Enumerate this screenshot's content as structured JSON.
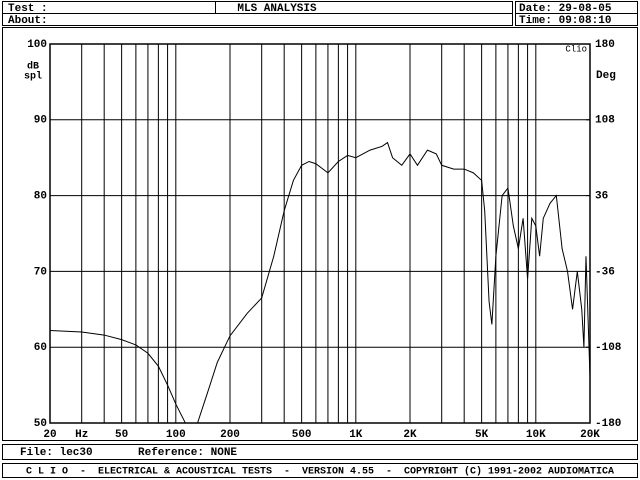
{
  "header": {
    "test_label": "Test :",
    "about_label": "About:",
    "title": "MLS ANALYSIS",
    "date": "Date: 29-08-05",
    "time": "Time: 09:08:10"
  },
  "chart_data": {
    "type": "line",
    "brand": "Clio",
    "y_label_lines": [
      "dB",
      "spl"
    ],
    "y2_label": "Deg",
    "x_unit": "Hz",
    "x_scale": "log",
    "grid": true,
    "xlim": [
      20,
      20000
    ],
    "xticks": [
      20,
      50,
      100,
      200,
      500,
      {
        "value": 1000,
        "label": "1K"
      },
      {
        "value": 2000,
        "label": "2K"
      },
      {
        "value": 5000,
        "label": "5K"
      },
      {
        "value": 10000,
        "label": "10K"
      },
      {
        "value": 20000,
        "label": "20K"
      }
    ],
    "xminor": [
      30,
      40,
      60,
      70,
      80,
      90,
      300,
      400,
      600,
      700,
      800,
      900,
      3000,
      4000,
      6000,
      7000,
      8000,
      9000
    ],
    "ylim": [
      50,
      100
    ],
    "yticks": [
      50,
      60,
      70,
      80,
      90,
      100
    ],
    "y2lim": [
      -180,
      180
    ],
    "y2ticks": [
      -180,
      -108,
      -36,
      36,
      108,
      180
    ],
    "series": [
      {
        "name": "lec30",
        "color": "#000000",
        "x": [
          20,
          30,
          40,
          50,
          60,
          70,
          80,
          90,
          100,
          113,
          120,
          132,
          150,
          170,
          200,
          250,
          300,
          350,
          400,
          450,
          500,
          550,
          600,
          700,
          800,
          900,
          1000,
          1200,
          1400,
          1500,
          1600,
          1800,
          2000,
          2200,
          2500,
          2800,
          3000,
          3500,
          4000,
          4500,
          5000,
          5200,
          5500,
          5700,
          6000,
          6500,
          7000,
          7500,
          8000,
          8500,
          9000,
          9500,
          10000,
          10500,
          11000,
          12000,
          13000,
          14000,
          15000,
          16000,
          17000,
          18000,
          18500,
          19000,
          20000
        ],
        "values": [
          62.2,
          62,
          61.6,
          61,
          60.3,
          59.2,
          57.5,
          55,
          52.5,
          50,
          null,
          50,
          54,
          58,
          61.5,
          64.5,
          66.5,
          72,
          78,
          82,
          84,
          84.5,
          84.2,
          83,
          84.5,
          85.3,
          85,
          86,
          86.5,
          87,
          85,
          84,
          85.5,
          84,
          86,
          85.5,
          84,
          83.5,
          83.5,
          83,
          82,
          78,
          66,
          63,
          72,
          80,
          81,
          76,
          73,
          77,
          69,
          77,
          76,
          72,
          77,
          79,
          80,
          73,
          70,
          65,
          70,
          65,
          60,
          72,
          56
        ]
      }
    ]
  },
  "footer": {
    "file": "File: lec30",
    "reference": "Reference: NONE",
    "banner": "C L I O  -  ELECTRICAL & ACOUSTICAL TESTS  -  VERSION 4.55  -  COPYRIGHT (C) 1991-2002 AUDIOMATICA"
  }
}
